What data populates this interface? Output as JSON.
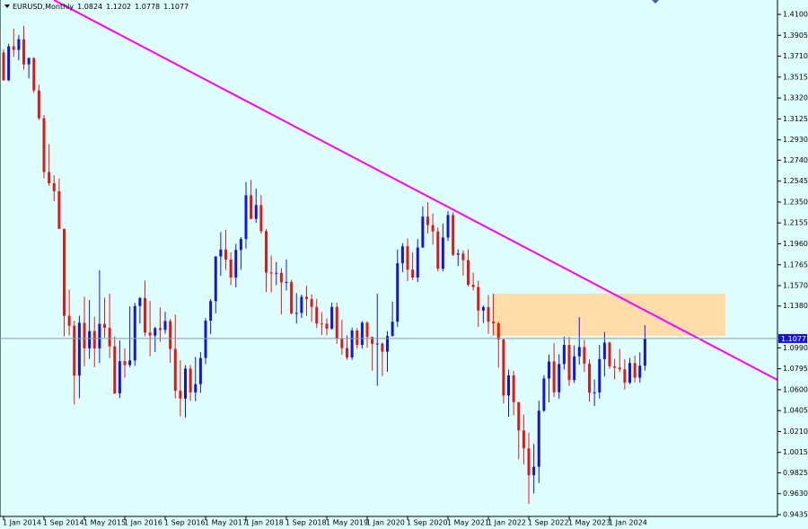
{
  "chart_data": {
    "type": "candlestick",
    "title": "EURUSD,Monthly",
    "up_color": "#1414dc",
    "down_color": "#e01818",
    "categories": [
      "1 Jan 2014",
      null,
      null,
      null,
      null,
      null,
      null,
      null,
      "1 Sep 2014",
      null,
      null,
      null,
      null,
      null,
      null,
      null,
      "1 May 2015",
      null,
      null,
      null,
      null,
      null,
      null,
      null,
      "1 Jan 2016",
      null,
      null,
      null,
      null,
      null,
      null,
      null,
      "1 Sep 2016",
      null,
      null,
      null,
      null,
      null,
      null,
      null,
      "1 May 2017",
      null,
      null,
      null,
      null,
      null,
      null,
      null,
      "1 Jan 2018",
      null,
      null,
      null,
      null,
      null,
      null,
      null,
      "1 Sep 2018",
      null,
      null,
      null,
      null,
      null,
      null,
      null,
      "1 May 2019",
      null,
      null,
      null,
      null,
      null,
      null,
      null,
      "1 Jan 2020",
      null,
      null,
      null,
      null,
      null,
      null,
      null,
      "1 Sep 2020",
      null,
      null,
      null,
      null,
      null,
      null,
      null,
      "1 May 2021",
      null,
      null,
      null,
      null,
      null,
      null,
      null,
      "1 Jan 2022",
      null,
      null,
      null,
      null,
      null,
      null,
      null,
      "1 Sep 2022",
      null,
      null,
      null,
      null,
      null,
      null,
      null,
      "1 May 2023",
      null,
      null,
      null,
      null,
      null,
      null,
      null,
      "1 Jan 2024",
      null,
      null,
      null,
      null,
      null,
      null,
      null
    ],
    "open": [
      1.3745,
      1.3486,
      1.3802,
      1.3769,
      1.3868,
      1.3634,
      1.3692,
      1.339,
      1.3131,
      1.263,
      1.2525,
      1.2451,
      1.21,
      1.1289,
      1.1196,
      1.0731,
      1.1224,
      1.0986,
      1.1146,
      1.0985,
      1.1213,
      1.1177,
      1.1004,
      1.0565,
      1.0866,
      1.083,
      1.0873,
      1.138,
      1.1455,
      1.1133,
      1.1105,
      1.1174,
      1.1157,
      1.124,
      1.098,
      1.059,
      1.0517,
      1.0797,
      1.0575,
      1.0652,
      1.0895,
      1.1243,
      1.1426,
      1.1842,
      1.1907,
      1.1813,
      1.1646,
      1.1903,
      1.2005,
      1.2413,
      1.2193,
      1.2322,
      1.2078,
      1.1693,
      1.1684,
      1.169,
      1.16,
      1.1604,
      1.1312,
      1.1316,
      1.1466,
      1.1446,
      1.1372,
      1.1217,
      1.1216,
      1.1169,
      1.1372,
      1.1076,
      1.0988,
      1.09,
      1.1152,
      1.1017,
      1.1225,
      1.1092,
      1.1027,
      1.103,
      1.0955,
      1.11,
      1.1234,
      1.1779,
      1.1937,
      1.172,
      1.1646,
      1.1926,
      1.2214,
      1.2135,
      1.2075,
      1.1728,
      1.2019,
      1.2228,
      1.1858,
      1.187,
      1.1808,
      1.1578,
      1.1557,
      1.1338,
      1.137,
      1.1234,
      1.1218,
      1.1067,
      1.0545,
      1.0733,
      1.0484,
      1.022,
      1.0053,
      0.9802,
      0.9882,
      1.0404,
      1.0705,
      1.0863,
      1.0576,
      1.0839,
      1.1017,
      1.069,
      1.091,
      1.0998,
      1.0843,
      1.0573,
      1.0575,
      1.0886,
      1.1039,
      1.0818,
      1.0805,
      1.079,
      1.0666,
      1.0848,
      1.0712,
      1.0824
    ],
    "high": [
      1.3775,
      1.3826,
      1.3967,
      1.3907,
      1.3993,
      1.37,
      1.37,
      1.3445,
      1.3163,
      1.2887,
      1.26,
      1.257,
      1.21,
      1.1534,
      1.1244,
      1.129,
      1.1467,
      1.1436,
      1.1278,
      1.1714,
      1.1459,
      1.1495,
      1.1095,
      1.1059,
      1.0985,
      1.1376,
      1.141,
      1.1464,
      1.1616,
      1.1428,
      1.1186,
      1.1366,
      1.1327,
      1.1259,
      1.13,
      1.0874,
      1.0829,
      1.0829,
      1.0906,
      1.095,
      1.1268,
      1.1445,
      1.1846,
      1.207,
      1.2092,
      1.188,
      1.1961,
      1.2023,
      1.2537,
      1.2556,
      1.2476,
      1.2414,
      1.2097,
      1.1852,
      1.1791,
      1.1734,
      1.1815,
      1.1625,
      1.15,
      1.1486,
      1.157,
      1.1489,
      1.1448,
      1.1324,
      1.1265,
      1.1412,
      1.1412,
      1.125,
      1.1109,
      1.1179,
      1.1175,
      1.1239,
      1.1239,
      1.1095,
      1.1495,
      1.104,
      1.1147,
      1.1422,
      1.1908,
      1.1966,
      1.2011,
      1.1881,
      1.2004,
      1.231,
      1.2349,
      1.2243,
      1.2113,
      1.2149,
      1.2266,
      1.2254,
      1.1909,
      1.19,
      1.1909,
      1.1692,
      1.1616,
      1.1386,
      1.1483,
      1.1495,
      1.1233,
      1.1076,
      1.0787,
      1.0774,
      1.0486,
      1.0368,
      1.0198,
      1.0094,
      1.0497,
      1.0736,
      1.0929,
      1.1033,
      1.093,
      1.1095,
      1.1092,
      1.1012,
      1.1276,
      1.1065,
      1.0882,
      1.0695,
      1.1017,
      1.1139,
      1.1046,
      1.0888,
      1.0981,
      1.0885,
      1.0895,
      1.0916,
      1.0948,
      1.1202
    ],
    "low": [
      1.3478,
      1.3477,
      1.3704,
      1.3673,
      1.3586,
      1.3503,
      1.3367,
      1.3116,
      1.2571,
      1.25,
      1.2358,
      1.2098,
      1.1098,
      1.1105,
      1.0462,
      1.052,
      1.0819,
      1.0888,
      1.0809,
      1.0848,
      1.1087,
      1.0894,
      1.0558,
      1.0523,
      1.0711,
      1.0809,
      1.0822,
      1.1217,
      1.1098,
      1.0912,
      1.0952,
      1.1046,
      1.1122,
      1.0851,
      1.0518,
      1.0352,
      1.034,
      1.0494,
      1.0493,
      1.057,
      1.0839,
      1.1118,
      1.1312,
      1.1662,
      1.1717,
      1.1574,
      1.1554,
      1.1717,
      1.1915,
      1.2189,
      1.2155,
      1.2055,
      1.151,
      1.1508,
      1.1575,
      1.1301,
      1.1526,
      1.1302,
      1.1216,
      1.1269,
      1.1289,
      1.1234,
      1.1176,
      1.1111,
      1.1107,
      1.116,
      1.1027,
      1.0926,
      1.0879,
      1.0879,
      1.0981,
      1.0981,
      1.0992,
      1.0778,
      1.0636,
      1.0727,
      1.0767,
      1.1097,
      1.1185,
      1.1696,
      1.1612,
      1.1622,
      1.1603,
      1.1923,
      1.2054,
      1.1952,
      1.1704,
      1.1704,
      1.1986,
      1.1847,
      1.1752,
      1.1664,
      1.1563,
      1.1524,
      1.1186,
      1.1222,
      1.1121,
      1.1106,
      1.0806,
      1.0471,
      1.0349,
      1.0359,
      0.9952,
      0.9901,
      0.9536,
      0.9632,
      0.973,
      1.0393,
      1.0483,
      1.0533,
      1.0516,
      1.0788,
      1.0635,
      1.0662,
      1.0833,
      1.0766,
      1.0488,
      1.0448,
      1.0517,
      1.0723,
      1.0795,
      1.0695,
      1.0765,
      1.0601,
      1.0649,
      1.0668,
      1.0665,
      1.0778
    ],
    "close": [
      1.3486,
      1.3802,
      1.3769,
      1.3868,
      1.3634,
      1.3692,
      1.339,
      1.3131,
      1.263,
      1.2525,
      1.2451,
      1.21,
      1.1289,
      1.1196,
      1.0731,
      1.1224,
      1.0986,
      1.1146,
      1.0985,
      1.1213,
      1.1177,
      1.1004,
      1.0565,
      1.0866,
      1.083,
      1.0873,
      1.138,
      1.1455,
      1.1133,
      1.1105,
      1.1174,
      1.1157,
      1.124,
      1.098,
      1.059,
      1.0517,
      1.0797,
      1.0575,
      1.0652,
      1.0895,
      1.1243,
      1.1426,
      1.1842,
      1.1907,
      1.1813,
      1.1646,
      1.1903,
      1.2005,
      1.2413,
      1.2193,
      1.2322,
      1.2078,
      1.1693,
      1.1684,
      1.169,
      1.16,
      1.1604,
      1.1312,
      1.1316,
      1.1466,
      1.1446,
      1.1372,
      1.1217,
      1.1216,
      1.1169,
      1.1372,
      1.1076,
      1.0988,
      1.09,
      1.1152,
      1.1017,
      1.1225,
      1.1092,
      1.1027,
      1.103,
      1.0955,
      1.11,
      1.1234,
      1.1779,
      1.1937,
      1.172,
      1.1646,
      1.1926,
      1.2214,
      1.2135,
      1.2075,
      1.1728,
      1.2019,
      1.2228,
      1.1858,
      1.187,
      1.1808,
      1.1578,
      1.1557,
      1.1338,
      1.137,
      1.1234,
      1.1218,
      1.1067,
      1.0545,
      1.0733,
      1.0484,
      1.022,
      1.0053,
      0.9802,
      0.9882,
      1.0404,
      1.0705,
      1.0863,
      1.0576,
      1.0839,
      1.1017,
      1.069,
      1.091,
      1.0998,
      1.0843,
      1.0573,
      1.0575,
      1.0886,
      1.1039,
      1.0818,
      1.0805,
      1.079,
      1.0666,
      1.0848,
      1.0712,
      1.0824,
      1.1077
    ],
    "ylim": [
      0.9418,
      1.4234
    ],
    "yticks": [
      {
        "value": 1.41,
        "label": "1.4100"
      },
      {
        "value": 1.3905,
        "label": "1.3905"
      },
      {
        "value": 1.371,
        "label": "1.3710"
      },
      {
        "value": 1.3515,
        "label": "1.3515"
      },
      {
        "value": 1.332,
        "label": "1.3320"
      },
      {
        "value": 1.3125,
        "label": "1.3125"
      },
      {
        "value": 1.293,
        "label": "1.2930"
      },
      {
        "value": 1.274,
        "label": "1.2740"
      },
      {
        "value": 1.2545,
        "label": "1.2545"
      },
      {
        "value": 1.235,
        "label": "1.2350"
      },
      {
        "value": 1.2155,
        "label": "1.2155"
      },
      {
        "value": 1.196,
        "label": "1.1960"
      },
      {
        "value": 1.1765,
        "label": "1.1765"
      },
      {
        "value": 1.157,
        "label": "1.1570"
      },
      {
        "value": 1.138,
        "label": "1.1380"
      },
      {
        "value": 1.099,
        "label": "1.0990"
      },
      {
        "value": 1.0795,
        "label": "1.0795"
      },
      {
        "value": 1.06,
        "label": "1.0600"
      },
      {
        "value": 1.0405,
        "label": "1.0405"
      },
      {
        "value": 1.021,
        "label": "1.0210"
      },
      {
        "value": 1.0015,
        "label": "1.0015"
      },
      {
        "value": 0.9825,
        "label": "0.9825"
      },
      {
        "value": 0.963,
        "label": "0.9630"
      },
      {
        "value": 0.9435,
        "label": "0.9435"
      }
    ]
  }
}
